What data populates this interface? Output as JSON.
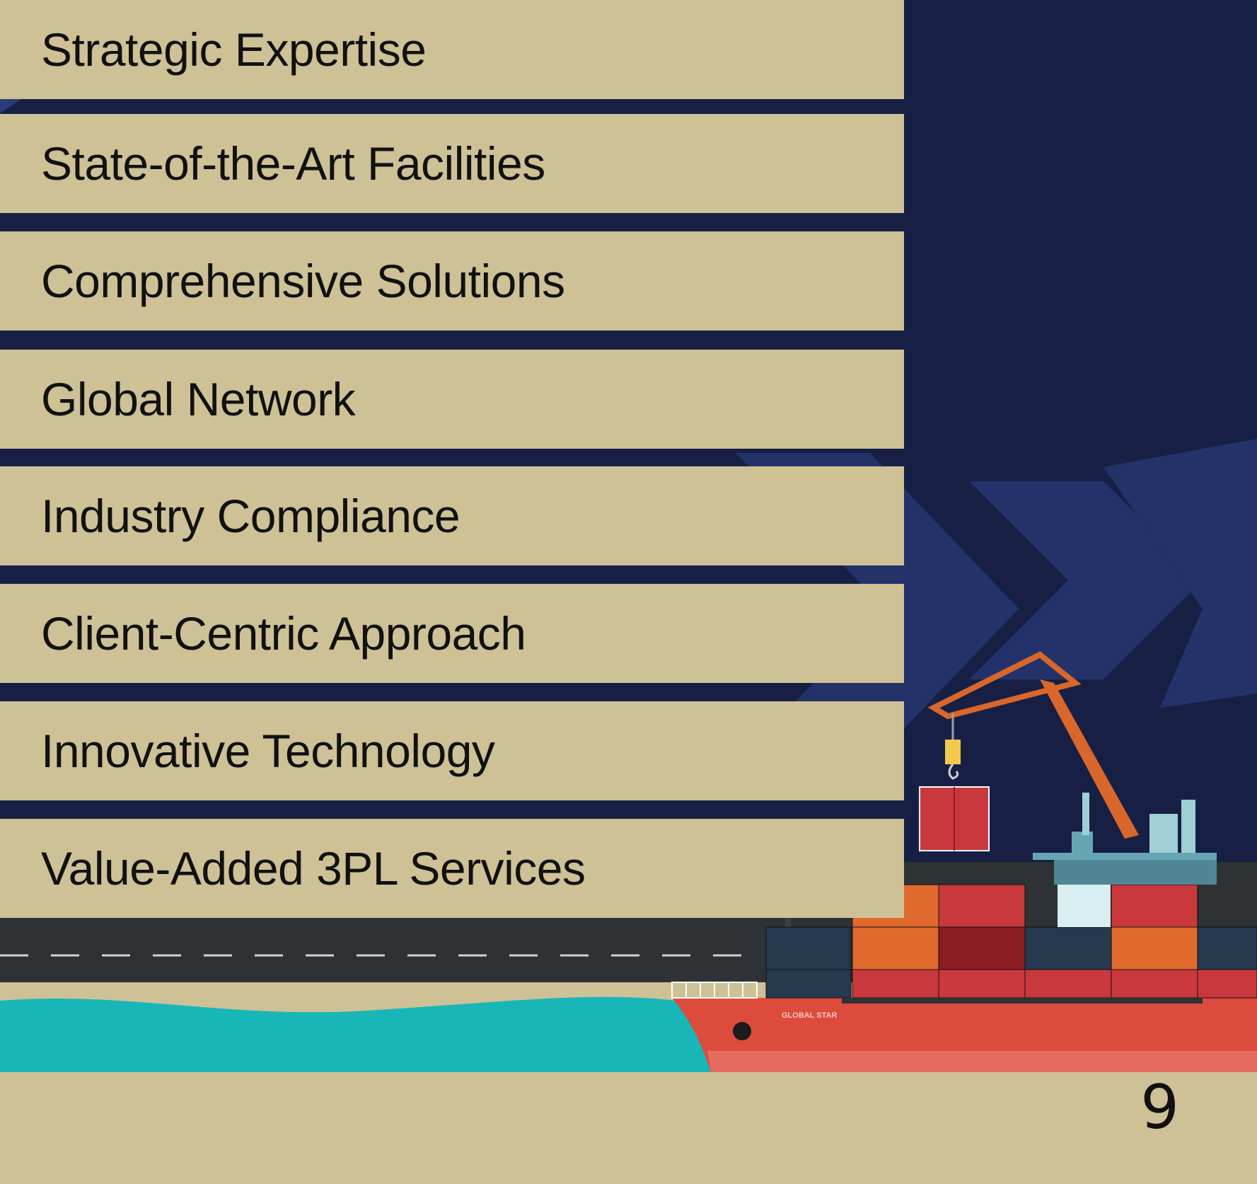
{
  "page": {
    "items": [
      {
        "label": "Strategic Expertise"
      },
      {
        "label": "State-of-the-Art Facilities"
      },
      {
        "label": "Comprehensive Solutions"
      },
      {
        "label": "Global Network"
      },
      {
        "label": "Industry Compliance"
      },
      {
        "label": "Client-Centric Approach"
      },
      {
        "label": "Innovative Technology"
      },
      {
        "label": "Value-Added 3PL Services"
      }
    ],
    "ship_name": "GLOBAL STAR",
    "page_number": "9"
  },
  "colors": {
    "beige": "#cec196",
    "navy": "#172044",
    "chevron": "#24326a",
    "road": "#2e3235",
    "water": "#19b6b8",
    "hull": "#dd4b3d",
    "crane": "#d9662b"
  }
}
